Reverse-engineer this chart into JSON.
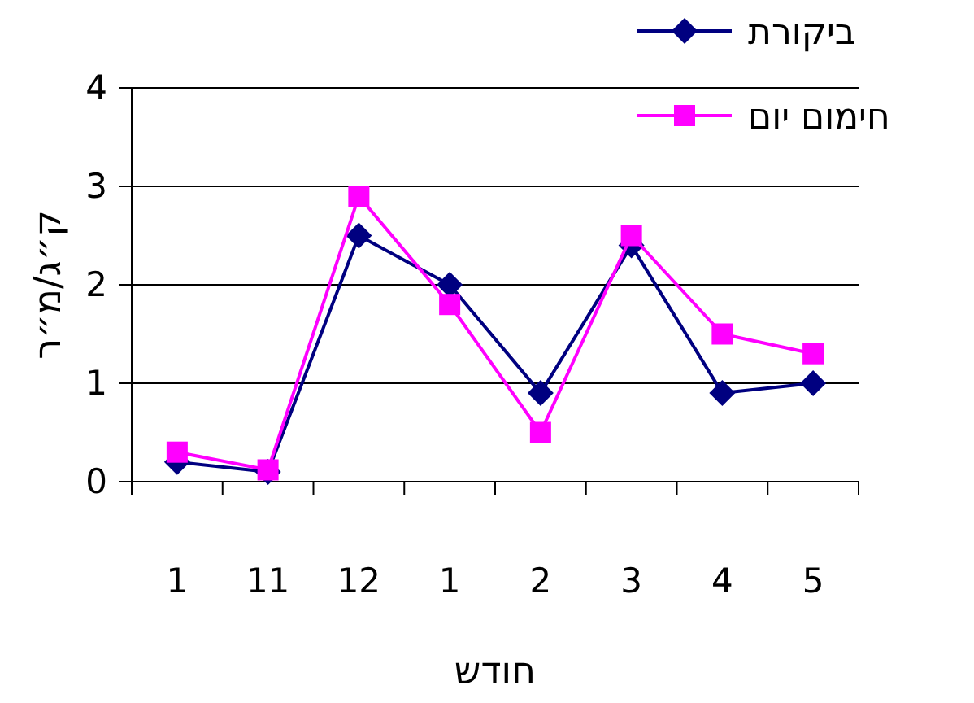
{
  "chart_data": {
    "type": "line",
    "xlabel": "חודש",
    "ylabel": "ק״ג/מ״ר",
    "categories": [
      "1",
      "11",
      "12",
      "1",
      "2",
      "3",
      "4",
      "5"
    ],
    "series": [
      {
        "name": "ביקורת",
        "color": "#000080",
        "marker": "diamond",
        "values": [
          0.2,
          0.1,
          2.5,
          2.0,
          0.9,
          2.4,
          0.9,
          1.0
        ]
      },
      {
        "name": "חימום יום",
        "color": "#ff00ff",
        "marker": "square",
        "values": [
          0.3,
          0.12,
          2.9,
          1.8,
          0.5,
          2.5,
          1.5,
          1.3
        ]
      }
    ],
    "ylim": [
      0,
      4
    ],
    "yticks": [
      0,
      1,
      2,
      3,
      4
    ],
    "grid": "y",
    "legend": "top right"
  }
}
